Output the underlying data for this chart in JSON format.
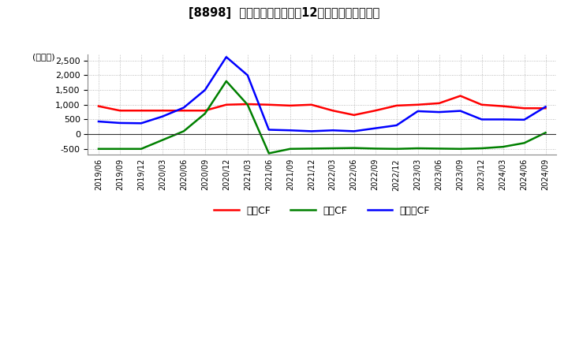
{
  "title": "[8898]  キャッシュフローの12か月移動合計の推移",
  "ylabel": "(百万円)",
  "ylim": [
    -700,
    2700
  ],
  "yticks": [
    -500,
    0,
    500,
    1000,
    1500,
    2000,
    2500
  ],
  "background_color": "#ffffff",
  "plot_bg_color": "#ffffff",
  "grid_color": "#aaaaaa",
  "dates": [
    "2019/06",
    "2019/09",
    "2019/12",
    "2020/03",
    "2020/06",
    "2020/09",
    "2020/12",
    "2021/03",
    "2021/06",
    "2021/09",
    "2021/12",
    "2022/03",
    "2022/06",
    "2022/09",
    "2022/12",
    "2023/03",
    "2023/06",
    "2023/09",
    "2023/12",
    "2024/03",
    "2024/06",
    "2024/09"
  ],
  "operating_cf": [
    950,
    800,
    800,
    800,
    800,
    800,
    1000,
    1020,
    1000,
    970,
    1000,
    800,
    650,
    800,
    970,
    1000,
    1050,
    1300,
    1000,
    950,
    880,
    880
  ],
  "investing_cf": [
    -500,
    -500,
    -500,
    -200,
    100,
    700,
    1800,
    1000,
    -650,
    -500,
    -490,
    -480,
    -470,
    -490,
    -500,
    -480,
    -490,
    -500,
    -480,
    -430,
    -300,
    50
  ],
  "free_cf": [
    430,
    380,
    370,
    600,
    900,
    1500,
    2620,
    2000,
    150,
    130,
    100,
    130,
    100,
    200,
    300,
    780,
    750,
    790,
    500,
    500,
    490,
    930
  ],
  "operating_color": "#ff0000",
  "investing_color": "#008000",
  "free_color": "#0000ff",
  "legend_labels": [
    "営業CF",
    "投資CF",
    "フリーCF"
  ],
  "line_width": 1.8
}
